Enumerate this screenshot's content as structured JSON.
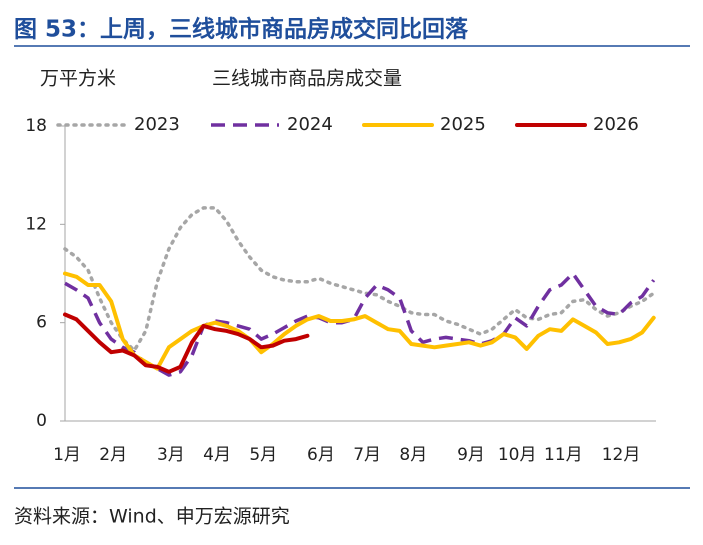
{
  "header": {
    "title": "图 53：上周，三线城市商品房成交同比回落"
  },
  "chart_data": {
    "type": "line",
    "title": "三线城市商品房成交量",
    "y_label": "万平方米",
    "categories": [
      "1月",
      null,
      null,
      null,
      "2月",
      null,
      null,
      null,
      null,
      "3月",
      null,
      null,
      null,
      "4月",
      null,
      null,
      null,
      "5月",
      null,
      null,
      null,
      null,
      "6月",
      null,
      null,
      null,
      "7月",
      null,
      null,
      null,
      "8月",
      null,
      null,
      null,
      null,
      "9月",
      null,
      null,
      null,
      "10月",
      null,
      null,
      null,
      "11月",
      null,
      null,
      null,
      null,
      "12月",
      null,
      null,
      null
    ],
    "series": [
      {
        "name": "2023",
        "color": "#a6a6a6",
        "style": "dotted",
        "values": [
          10.5,
          10,
          9.2,
          7.5,
          6,
          5,
          4.3,
          5.5,
          8.5,
          10.5,
          11.8,
          12.6,
          13,
          13,
          12.2,
          11,
          10,
          9.2,
          8.8,
          8.6,
          8.5,
          8.5,
          8.7,
          8.4,
          8.2,
          8,
          7.8,
          7.7,
          7.3,
          7,
          6.6,
          6.5,
          6.5,
          6.1,
          5.9,
          5.6,
          5.3,
          5.6,
          6.2,
          6.8,
          6.3,
          6.2,
          6.5,
          6.6,
          7.3,
          7.4,
          6.8,
          6.4,
          6.6,
          7,
          7.3,
          7.8
        ]
      },
      {
        "name": "2024",
        "color": "#7030a0",
        "style": "dashed",
        "values": [
          8.4,
          8,
          7.5,
          6,
          5,
          4.5,
          4.2,
          3.5,
          3.2,
          2.8,
          3,
          4,
          5.8,
          6.1,
          6,
          5.8,
          5.6,
          5,
          5.3,
          5.7,
          6.1,
          6.4,
          6.3,
          6,
          6,
          6.2,
          7.5,
          8.3,
          8,
          7.5,
          5.5,
          4.8,
          5,
          5.1,
          5,
          4.9,
          4.7,
          4.9,
          5.3,
          6.3,
          5.8,
          7,
          8,
          8.3,
          9,
          8,
          7,
          6.6,
          6.5,
          7.2,
          7.6,
          8.6
        ]
      },
      {
        "name": "2025",
        "color": "#ffc000",
        "style": "solid",
        "values": [
          9,
          8.8,
          8.3,
          8.3,
          7.3,
          5,
          4,
          3.6,
          3.2,
          4.5,
          5,
          5.5,
          5.8,
          6,
          5.8,
          5.5,
          5,
          4.2,
          4.7,
          5.3,
          5.8,
          6.2,
          6.4,
          6.1,
          6.1,
          6.2,
          6.4,
          6,
          5.6,
          5.5,
          4.7,
          4.6,
          4.5,
          4.6,
          4.7,
          4.8,
          4.6,
          4.8,
          5.3,
          5.1,
          4.4,
          5.2,
          5.6,
          5.5,
          6.2,
          5.8,
          5.4,
          4.7,
          4.8,
          5,
          5.4,
          6.3
        ]
      },
      {
        "name": "2026",
        "color": "#c00000",
        "style": "solid",
        "values": [
          6.5,
          6.2,
          5.5,
          4.8,
          4.2,
          4.3,
          4,
          3.4,
          3.3,
          3,
          3.3,
          4.8,
          5.8,
          5.6,
          5.5,
          5.3,
          5,
          4.5,
          4.6,
          4.9,
          5,
          5.2,
          null,
          null,
          null,
          null,
          null,
          null,
          null,
          null,
          null,
          null,
          null,
          null,
          null,
          null,
          null,
          null,
          null,
          null,
          null,
          null,
          null,
          null,
          null,
          null,
          null,
          null,
          null,
          null,
          null,
          null
        ]
      }
    ],
    "ylim": [
      0,
      18
    ],
    "yticks": [
      0,
      6,
      12,
      18
    ],
    "grid": false
  },
  "footer": {
    "source": "资料来源：Wind、申万宏源研究"
  }
}
